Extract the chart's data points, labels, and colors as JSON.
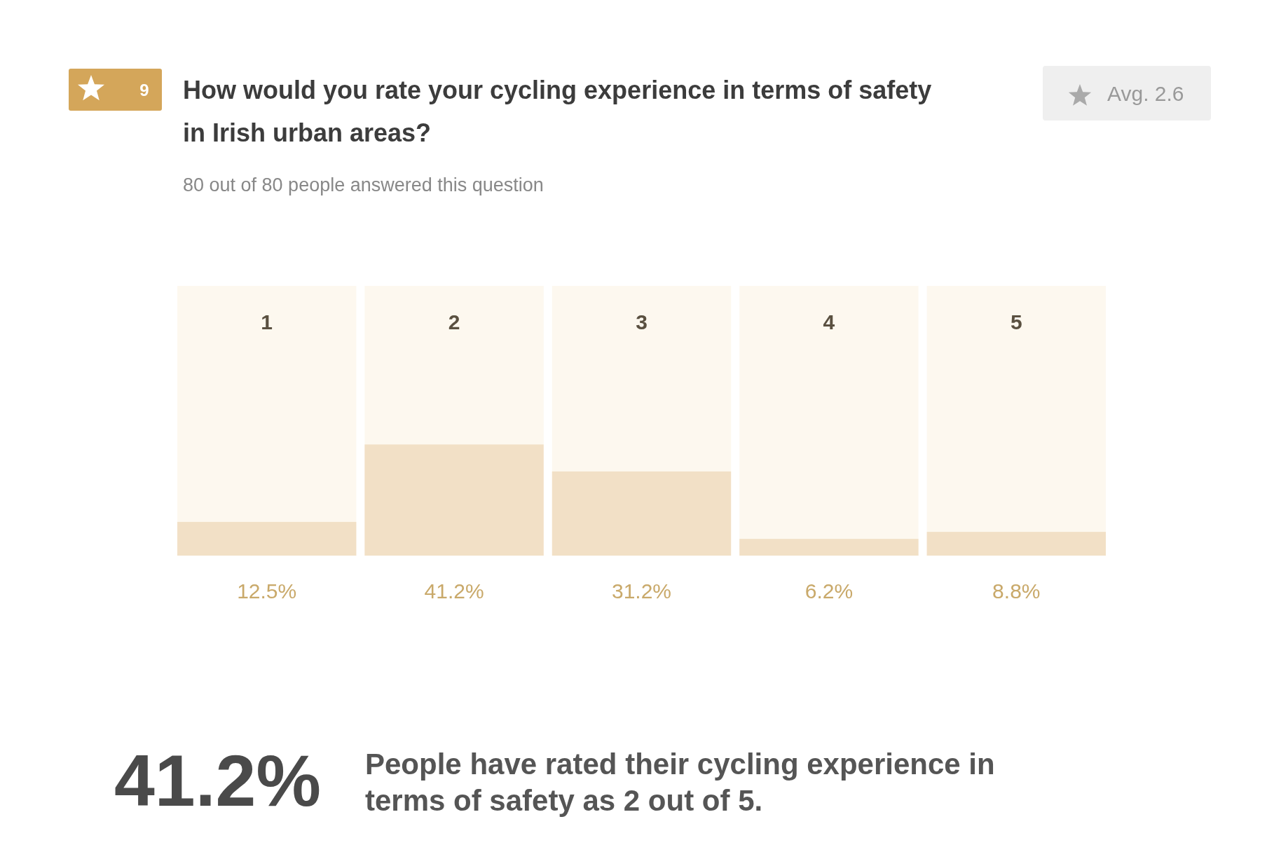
{
  "chart_data": {
    "type": "bar",
    "title": "How would you rate your cycling experience in terms of safety in Irish urban areas?",
    "subtitle": "80 out of 80 people answered this question",
    "categories": [
      "1",
      "2",
      "3",
      "4",
      "5"
    ],
    "values": [
      12.5,
      41.2,
      31.2,
      6.2,
      8.8
    ],
    "value_labels": [
      "12.5%",
      "41.2%",
      "31.2%",
      "6.2%",
      "8.8%"
    ],
    "color": "#f2e0c6",
    "ylim": [
      0,
      100
    ],
    "annotations": [
      "9",
      "Avg. 2.6",
      "41.2%",
      "People have rated their cycling experience in terms of safety as 2 out of 5."
    ]
  }
}
